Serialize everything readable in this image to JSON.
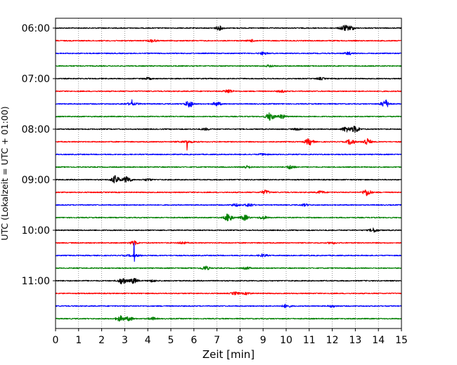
{
  "chart_data": {
    "type": "line",
    "subtype": "helicorder",
    "xlabel": "Zeit  [min]",
    "ylabel": "UTC (Lokalzeit = UTC + 01:00)",
    "xlim": [
      0,
      15
    ],
    "xticks": [
      "0",
      "1",
      "2",
      "3",
      "4",
      "5",
      "6",
      "7",
      "8",
      "9",
      "10",
      "11",
      "12",
      "13",
      "14",
      "15"
    ],
    "yticks": [
      "06:00",
      "07:00",
      "08:00",
      "09:00",
      "10:00",
      "11:00"
    ],
    "grid": "vertical dotted lines at each minute",
    "trace_interval_minutes": 15,
    "traces_per_hour": 4,
    "trace_colors": [
      "#000000",
      "#ff0000",
      "#0000ff",
      "#008000"
    ],
    "traces": [
      {
        "start": "06:00",
        "events": [
          [
            7.1,
            0.3
          ],
          [
            12.5,
            0.4
          ],
          [
            12.8,
            0.3
          ]
        ]
      },
      {
        "start": "06:15",
        "events": [
          [
            4.2,
            0.2
          ],
          [
            8.5,
            0.15
          ]
        ]
      },
      {
        "start": "06:30",
        "events": [
          [
            9.0,
            0.2
          ],
          [
            12.7,
            0.2
          ]
        ]
      },
      {
        "start": "06:45",
        "events": [
          [
            9.3,
            0.15
          ]
        ]
      },
      {
        "start": "07:00",
        "events": [
          [
            4.0,
            0.15
          ],
          [
            11.5,
            0.15
          ]
        ]
      },
      {
        "start": "07:15",
        "events": [
          [
            7.5,
            0.3
          ],
          [
            9.8,
            0.15
          ]
        ]
      },
      {
        "start": "07:30",
        "events": [
          [
            3.3,
            0.9
          ],
          [
            5.8,
            0.5
          ],
          [
            7.0,
            0.3
          ],
          [
            14.3,
            0.6
          ]
        ]
      },
      {
        "start": "07:45",
        "events": [
          [
            9.3,
            0.6
          ],
          [
            9.8,
            0.3
          ]
        ]
      },
      {
        "start": "08:00",
        "events": [
          [
            6.5,
            0.15
          ],
          [
            10.5,
            0.15
          ],
          [
            12.6,
            0.4
          ],
          [
            13.0,
            0.5
          ]
        ]
      },
      {
        "start": "08:15",
        "events": [
          [
            5.7,
            2.0
          ],
          [
            11.0,
            0.5
          ],
          [
            12.8,
            0.4
          ],
          [
            13.5,
            0.5
          ]
        ]
      },
      {
        "start": "08:30",
        "events": [
          [
            9.0,
            0.15
          ]
        ]
      },
      {
        "start": "08:45",
        "events": [
          [
            8.3,
            0.2
          ],
          [
            10.2,
            0.3
          ]
        ]
      },
      {
        "start": "09:00",
        "events": [
          [
            2.6,
            0.6
          ],
          [
            3.1,
            0.5
          ],
          [
            4.0,
            0.15
          ]
        ]
      },
      {
        "start": "09:15",
        "events": [
          [
            9.1,
            0.3
          ],
          [
            11.5,
            0.2
          ],
          [
            13.5,
            0.5
          ]
        ]
      },
      {
        "start": "09:30",
        "events": [
          [
            7.8,
            0.2
          ],
          [
            8.4,
            0.25
          ],
          [
            10.8,
            0.15
          ]
        ]
      },
      {
        "start": "09:45",
        "events": [
          [
            7.5,
            0.6
          ],
          [
            8.2,
            0.4
          ],
          [
            9.0,
            0.25
          ]
        ]
      },
      {
        "start": "10:00",
        "events": [
          [
            13.8,
            0.3
          ]
        ]
      },
      {
        "start": "10:15",
        "events": [
          [
            3.4,
            0.3
          ],
          [
            5.5,
            0.15
          ],
          [
            12.0,
            0.15
          ]
        ]
      },
      {
        "start": "10:30",
        "events": [
          [
            3.4,
            3.0
          ],
          [
            9.0,
            0.2
          ]
        ]
      },
      {
        "start": "10:45",
        "events": [
          [
            6.5,
            0.3
          ],
          [
            8.3,
            0.15
          ]
        ]
      },
      {
        "start": "11:00",
        "events": [
          [
            2.9,
            0.5
          ],
          [
            3.4,
            0.4
          ],
          [
            4.2,
            0.15
          ]
        ]
      },
      {
        "start": "11:15",
        "events": [
          [
            7.8,
            0.2
          ],
          [
            8.3,
            0.15
          ]
        ]
      },
      {
        "start": "11:30",
        "events": [
          [
            10.0,
            0.25
          ],
          [
            12.0,
            0.15
          ]
        ]
      },
      {
        "start": "11:45",
        "events": [
          [
            2.8,
            0.4
          ],
          [
            3.2,
            0.3
          ],
          [
            4.2,
            0.2
          ]
        ]
      }
    ]
  }
}
